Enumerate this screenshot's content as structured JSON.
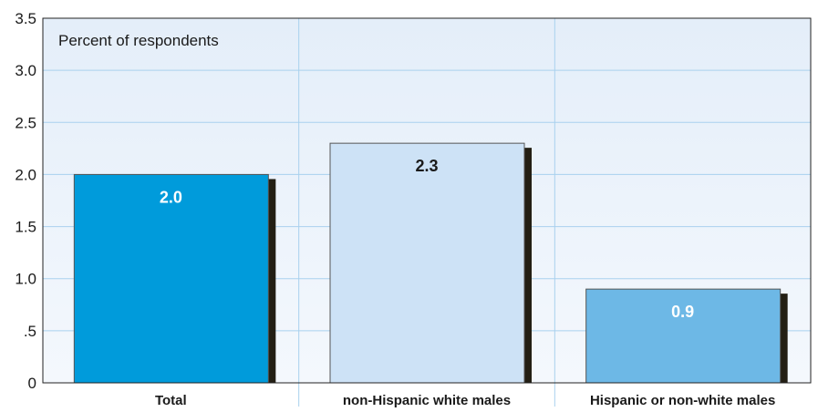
{
  "chart_data": {
    "type": "bar",
    "ylabel": "Percent of respondents",
    "categories": [
      "Total",
      "non-Hispanic white males",
      "Hispanic or non-white males"
    ],
    "values": [
      2.0,
      2.3,
      0.9
    ],
    "value_labels": [
      "2.0",
      "2.3",
      "0.9"
    ],
    "ylim": [
      0,
      3.5
    ],
    "y_ticks": [
      0,
      0.5,
      1.0,
      1.5,
      2.0,
      2.5,
      3.0,
      3.5
    ],
    "y_tick_labels": [
      "0",
      ".5",
      "1.0",
      "1.5",
      "2.0",
      "2.5",
      "3.0",
      "3.5"
    ],
    "grid": true,
    "colors": {
      "plot_background_top": "#e4eef9",
      "plot_background_bottom": "#f4f8fd",
      "grid": "#a9d1ee",
      "shadow": "#231f14",
      "bars": [
        "#009bdb",
        "#cde2f6",
        "#6db8e6"
      ],
      "value_label_colors": [
        "#ffffff",
        "#1a1a1a",
        "#ffffff"
      ]
    }
  }
}
